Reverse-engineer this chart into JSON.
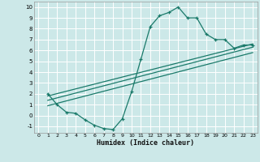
{
  "xlabel": "Humidex (Indice chaleur)",
  "bg_color": "#cce8e8",
  "grid_color": "#ffffff",
  "line_color": "#1a7a6a",
  "xlim": [
    -0.5,
    23.5
  ],
  "ylim": [
    -1.6,
    10.5
  ],
  "xticks": [
    0,
    1,
    2,
    3,
    4,
    5,
    6,
    7,
    8,
    9,
    10,
    11,
    12,
    13,
    14,
    15,
    16,
    17,
    18,
    19,
    20,
    21,
    22,
    23
  ],
  "yticks": [
    -1,
    0,
    1,
    2,
    3,
    4,
    5,
    6,
    7,
    8,
    9,
    10
  ],
  "curve_x": [
    1,
    2,
    3,
    4,
    5,
    6,
    7,
    8,
    9,
    10,
    11,
    12,
    13,
    14,
    15,
    16,
    17,
    18,
    19,
    20,
    21,
    22,
    23
  ],
  "curve_y": [
    2,
    1,
    0.3,
    0.2,
    -0.4,
    -0.9,
    -1.2,
    -1.3,
    -0.3,
    2.2,
    5.2,
    8.2,
    9.2,
    9.5,
    10.0,
    9.0,
    9.0,
    7.5,
    7.0,
    7.0,
    6.2,
    6.5,
    6.5
  ],
  "line1_x": [
    1,
    23
  ],
  "line1_y": [
    1.8,
    6.6
  ],
  "line2_x": [
    1,
    23
  ],
  "line2_y": [
    1.4,
    6.3
  ],
  "line3_x": [
    1,
    23
  ],
  "line3_y": [
    0.9,
    5.8
  ]
}
